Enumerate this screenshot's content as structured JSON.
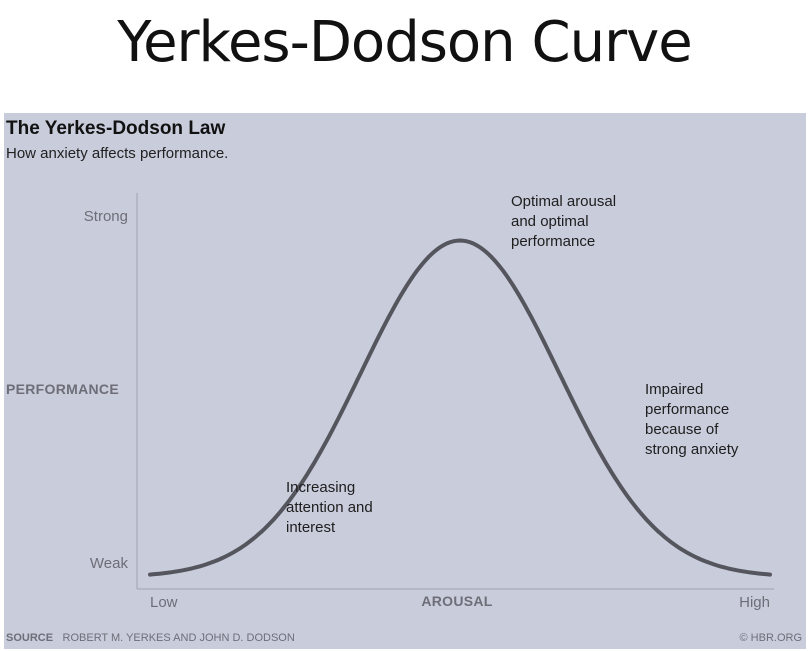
{
  "slide": {
    "title": "Yerkes-Dodson Curve"
  },
  "chart_data": {
    "type": "line",
    "title": "The Yerkes-Dodson Law",
    "subtitle": "How anxiety affects performance.",
    "xlabel": "AROUSAL",
    "ylabel": "PERFORMANCE",
    "x_ticks": [
      "Low",
      "High"
    ],
    "y_ticks": [
      "Strong",
      "Weak"
    ],
    "grid": false,
    "legend": "none",
    "curve": {
      "shape": "bell",
      "peak_x": 0.5,
      "peak_y": 0.88,
      "baseline_y": 0.03,
      "spread": 0.16
    },
    "annotations": [
      {
        "id": "rising",
        "lines": [
          "Increasing",
          "attention and",
          "interest"
        ]
      },
      {
        "id": "peak",
        "lines": [
          "Optimal arousal",
          "and optimal",
          "performance"
        ]
      },
      {
        "id": "falling",
        "lines": [
          "Impaired",
          "performance",
          "because of",
          "strong anxiety"
        ]
      }
    ],
    "source_label": "SOURCE",
    "source_text": "ROBERT M. YERKES AND JOHN D. DODSON",
    "credit": "© HBR.ORG",
    "colors": {
      "background": "#c8ccdb",
      "curve": "#55555d",
      "axis": "#a8aab8"
    }
  }
}
